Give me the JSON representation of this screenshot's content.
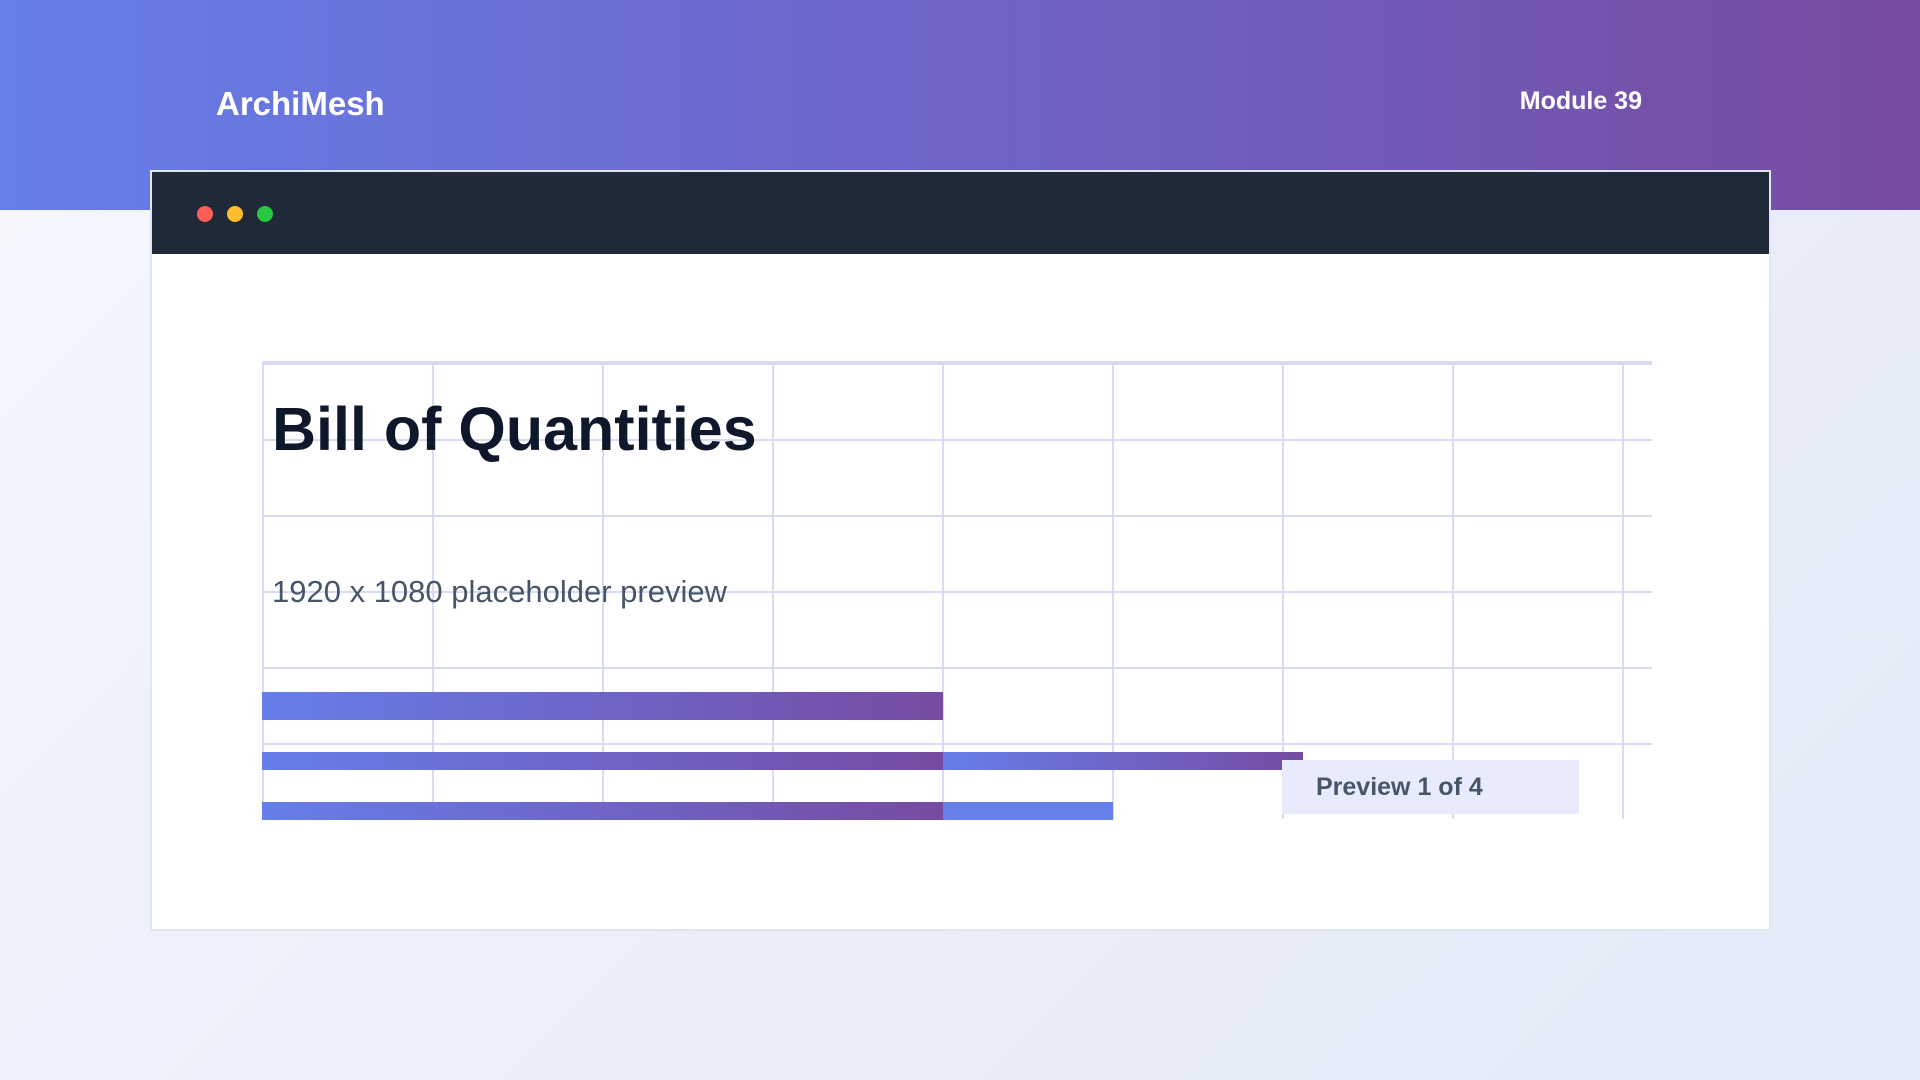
{
  "header": {
    "brand": "ArchiMesh",
    "module": "Module 39",
    "accent_start": "#667eea",
    "accent_end": "#764ba2"
  },
  "window": {
    "controls": [
      "close",
      "minimize",
      "maximize"
    ],
    "control_colors": [
      "#ff5f57",
      "#febc2e",
      "#28c840"
    ],
    "titlebar_color": "#202938"
  },
  "main": {
    "title": "Bill of Quantities",
    "subtitle": "1920 x 1080 placeholder preview",
    "preview_label": "Preview 1 of 4"
  }
}
